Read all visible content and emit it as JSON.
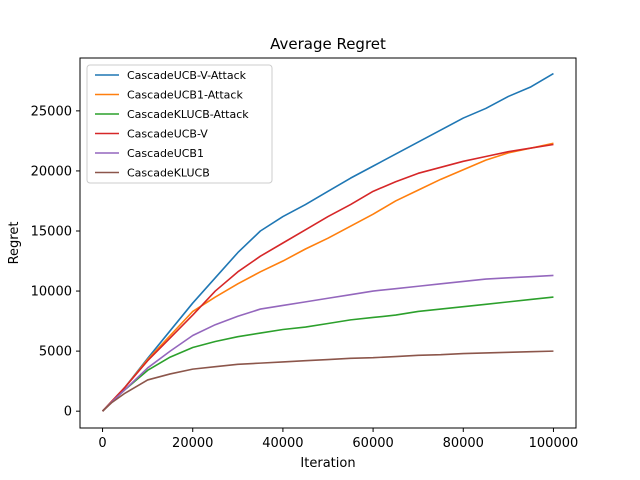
{
  "chart_data": {
    "type": "line",
    "title": "Average Regret",
    "xlabel": "Iteration",
    "ylabel": "Regret",
    "xlim": [
      -5000,
      105000
    ],
    "ylim": [
      -1400,
      29400
    ],
    "xticks": [
      0,
      20000,
      40000,
      60000,
      80000,
      100000
    ],
    "yticks": [
      0,
      5000,
      10000,
      15000,
      20000,
      25000
    ],
    "grid": false,
    "legend_position": "top-left",
    "x": [
      0,
      2000,
      5000,
      10000,
      15000,
      20000,
      25000,
      30000,
      35000,
      40000,
      45000,
      50000,
      55000,
      60000,
      65000,
      70000,
      75000,
      80000,
      85000,
      90000,
      95000,
      100000
    ],
    "series": [
      {
        "name": "CascadeUCB-V-Attack",
        "color": "#1f77b4",
        "values": [
          0,
          800,
          2000,
          4400,
          6700,
          9000,
          11100,
          13200,
          15000,
          16200,
          17200,
          18300,
          19400,
          20400,
          21400,
          22400,
          23400,
          24400,
          25200,
          26200,
          27000,
          28100
        ]
      },
      {
        "name": "CascadeUCB1-Attack",
        "color": "#ff7f0e",
        "values": [
          0,
          800,
          2000,
          4300,
          6300,
          8300,
          9500,
          10600,
          11600,
          12500,
          13500,
          14400,
          15400,
          16400,
          17500,
          18400,
          19300,
          20100,
          20900,
          21500,
          21900,
          22300
        ]
      },
      {
        "name": "CascadeKLUCB-Attack",
        "color": "#2ca02c",
        "values": [
          0,
          750,
          1800,
          3400,
          4500,
          5300,
          5800,
          6200,
          6500,
          6800,
          7000,
          7300,
          7600,
          7800,
          8000,
          8300,
          8500,
          8700,
          8900,
          9100,
          9300,
          9500
        ]
      },
      {
        "name": "CascadeUCB-V",
        "color": "#d62728",
        "values": [
          0,
          800,
          2000,
          4200,
          6100,
          8000,
          10000,
          11600,
          12900,
          14000,
          15100,
          16200,
          17200,
          18300,
          19100,
          19800,
          20300,
          20800,
          21200,
          21600,
          21900,
          22200
        ]
      },
      {
        "name": "CascadeUCB1",
        "color": "#9467bd",
        "values": [
          0,
          750,
          1800,
          3600,
          5000,
          6300,
          7200,
          7900,
          8500,
          8800,
          9100,
          9400,
          9700,
          10000,
          10200,
          10400,
          10600,
          10800,
          11000,
          11100,
          11200,
          11300
        ]
      },
      {
        "name": "CascadeKLUCB",
        "color": "#8c564b",
        "values": [
          0,
          700,
          1500,
          2600,
          3100,
          3500,
          3700,
          3900,
          4000,
          4100,
          4200,
          4300,
          4400,
          4450,
          4550,
          4650,
          4700,
          4800,
          4850,
          4900,
          4950,
          5000
        ]
      }
    ]
  }
}
